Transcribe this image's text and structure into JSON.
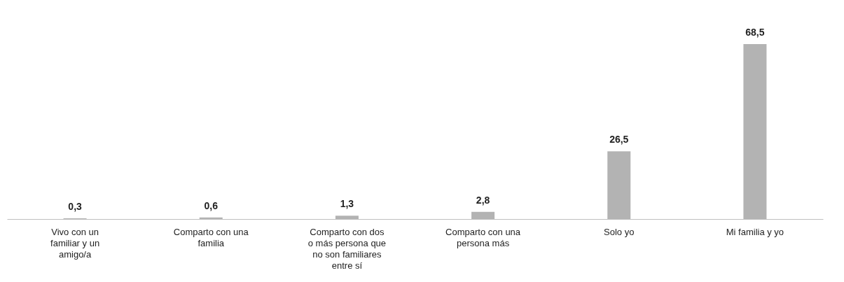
{
  "chart_data": {
    "type": "bar",
    "categories": [
      "Vivo con un familiar y un amigo/a",
      "Comparto con una familia",
      "Comparto con dos o más persona que no son familiares entre sí",
      "Comparto con una persona más",
      "Solo yo",
      "Mi familia y yo"
    ],
    "values": [
      0.3,
      0.6,
      1.3,
      2.8,
      26.5,
      68.5
    ],
    "value_labels": [
      "0,3",
      "0,6",
      "1,3",
      "2,8",
      "26,5",
      "68,5"
    ],
    "color": "#b3b3b3"
  }
}
